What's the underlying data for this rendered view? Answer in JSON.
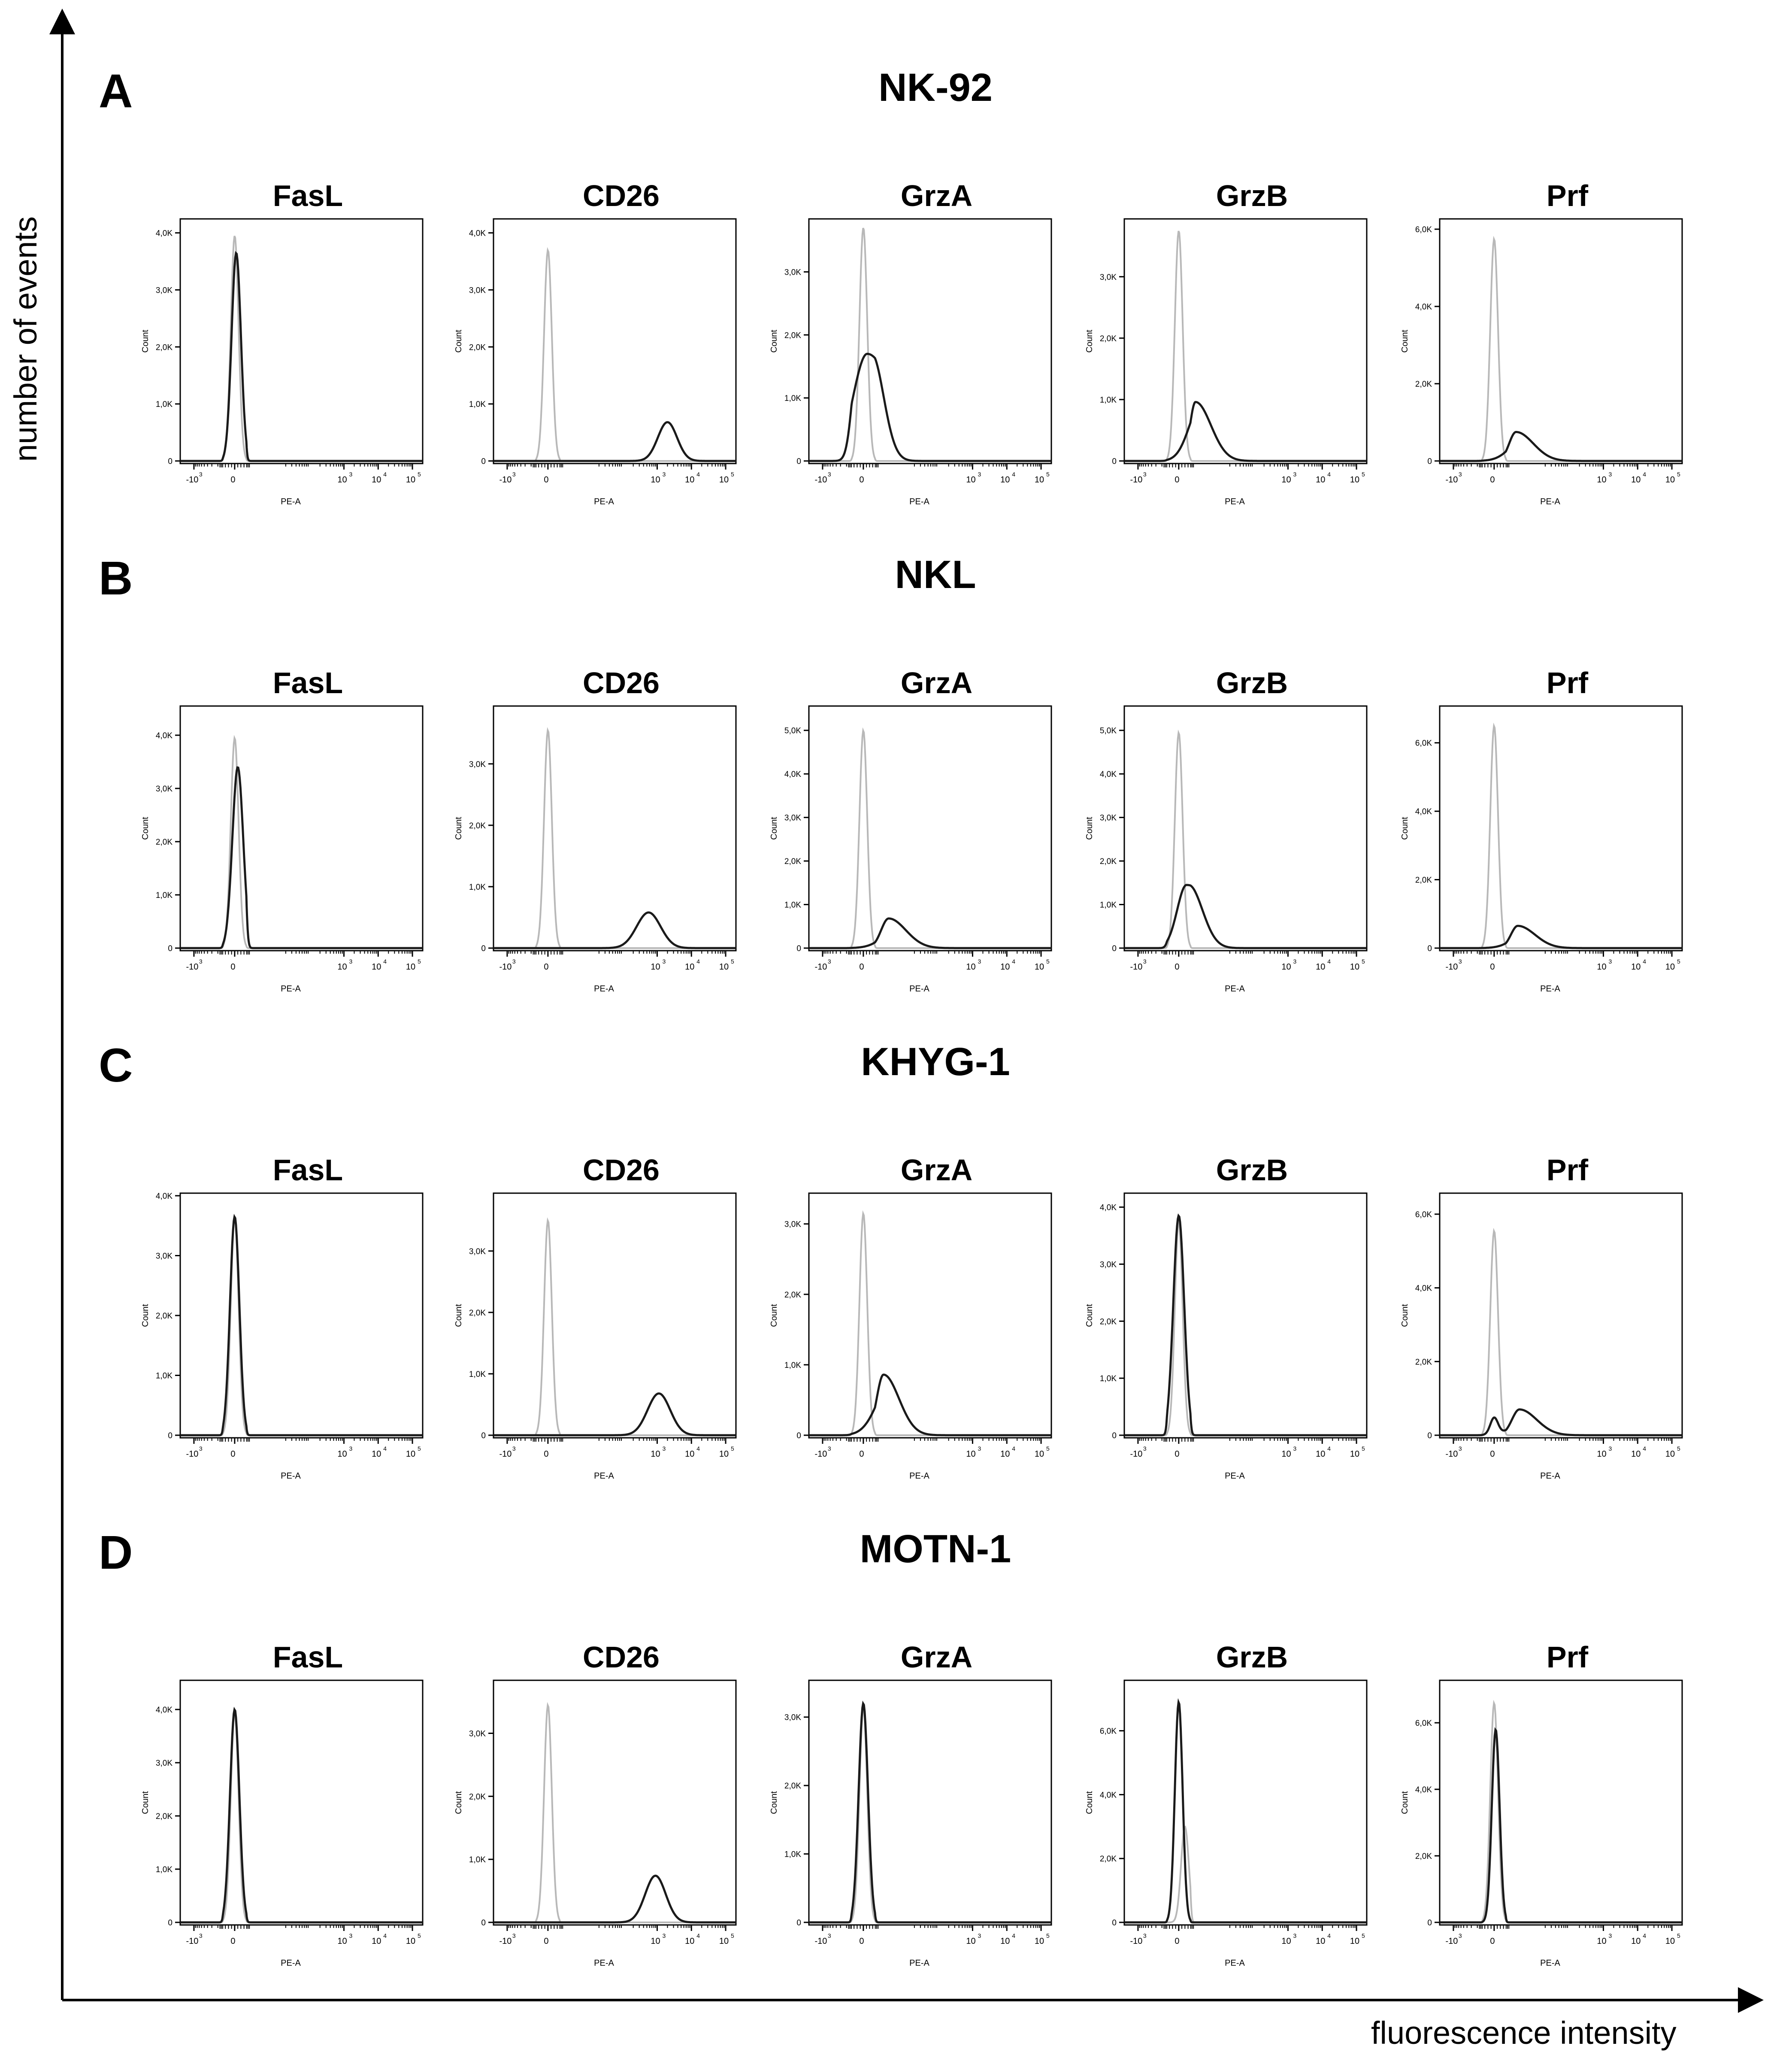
{
  "figure": {
    "y_axis_label": "number of events",
    "x_axis_label": "fluorescence intensity",
    "colors": {
      "isotype": "#b8b8b8",
      "stained": "#1a1a1a",
      "axis": "#000000"
    }
  },
  "chart_data": {
    "type": "line",
    "subtype": "flow-cytometry-histogram-grid",
    "axis_text": {
      "x_ticks": [
        "-10",
        "0",
        "10",
        "10",
        "10"
      ],
      "x_tick_exponents": [
        "3",
        "",
        "3",
        "4",
        "5"
      ],
      "x_axis": "PE-A",
      "y_axis": "Count"
    },
    "panels": [
      {
        "letter": "A",
        "cell_line": "NK-92",
        "markers": [
          {
            "marker": "FasL",
            "yticks": [
              "0",
              "1,0K",
              "2,0K",
              "3,0K",
              "4,0K"
            ],
            "ymax": 4200,
            "iso": {
              "mu": 0.0,
              "sd": 0.05,
              "peak": 3950
            },
            "stain": [
              {
                "mu": 0.02,
                "sd": 0.06,
                "peak": 3650
              }
            ]
          },
          {
            "marker": "CD26",
            "yticks": [
              "0",
              "1,0K",
              "2,0K",
              "3,0K",
              "4,0K"
            ],
            "ymax": 4200,
            "iso": {
              "mu": 0.0,
              "sd": 0.05,
              "peak": 3700
            },
            "stain": [
              {
                "mu": 3.3,
                "sd": 0.28,
                "peak": 680
              }
            ]
          },
          {
            "marker": "GrzA",
            "yticks": [
              "0",
              "1,0K",
              "2,0K",
              "3,0K"
            ],
            "ymax": 3800,
            "iso": {
              "mu": 0.0,
              "sd": 0.05,
              "peak": 3700
            },
            "stain": [
              {
                "mu": 0.05,
                "sd": 0.18,
                "peak": 1700,
                "sd_right": 0.35
              }
            ]
          },
          {
            "marker": "GrzB",
            "yticks": [
              "0",
              "1,0K",
              "2,0K",
              "3,0K"
            ],
            "ymax": 3900,
            "iso": {
              "mu": 0.0,
              "sd": 0.05,
              "peak": 3750
            },
            "stain": [
              {
                "mu": 0.3,
                "sd": 0.16,
                "peak": 960,
                "sd_right": 0.45
              }
            ]
          },
          {
            "marker": "Prf",
            "yticks": [
              "0",
              "2,0K",
              "4,0K",
              "6,0K"
            ],
            "ymax": 6200,
            "iso": {
              "mu": 0.0,
              "sd": 0.05,
              "peak": 5750
            },
            "stain": [
              {
                "mu": 0.45,
                "sd": 0.2,
                "peak": 750,
                "sd_right": 0.5
              }
            ]
          }
        ]
      },
      {
        "letter": "B",
        "cell_line": "NKL",
        "markers": [
          {
            "marker": "FasL",
            "yticks": [
              "0",
              "1,0K",
              "2,0K",
              "3,0K",
              "4,0K"
            ],
            "ymax": 4500,
            "iso": {
              "mu": 0.0,
              "sd": 0.05,
              "peak": 3950
            },
            "stain": [
              {
                "mu": 0.04,
                "sd": 0.07,
                "peak": 3400
              }
            ]
          },
          {
            "marker": "CD26",
            "yticks": [
              "0",
              "1,0K",
              "2,0K",
              "3,0K"
            ],
            "ymax": 3900,
            "iso": {
              "mu": 0.0,
              "sd": 0.05,
              "peak": 3550
            },
            "stain": [
              {
                "mu": 2.75,
                "sd": 0.35,
                "peak": 580
              }
            ]
          },
          {
            "marker": "GrzA",
            "yticks": [
              "0",
              "1,0K",
              "2,0K",
              "3,0K",
              "4,0K",
              "5,0K"
            ],
            "ymax": 5500,
            "iso": {
              "mu": 0.0,
              "sd": 0.05,
              "peak": 5000
            },
            "stain": [
              {
                "mu": 0.55,
                "sd": 0.22,
                "peak": 680,
                "sd_right": 0.5
              }
            ]
          },
          {
            "marker": "GrzB",
            "yticks": [
              "0",
              "1,0K",
              "2,0K",
              "3,0K",
              "4,0K",
              "5,0K"
            ],
            "ymax": 5500,
            "iso": {
              "mu": 0.0,
              "sd": 0.05,
              "peak": 4950
            },
            "stain": [
              {
                "mu": 0.1,
                "sd": 0.12,
                "peak": 1450,
                "sd_right": 0.4
              }
            ]
          },
          {
            "marker": "Prf",
            "yticks": [
              "0",
              "2,0K",
              "4,0K",
              "6,0K"
            ],
            "ymax": 7000,
            "iso": {
              "mu": 0.0,
              "sd": 0.05,
              "peak": 6500
            },
            "stain": [
              {
                "mu": 0.5,
                "sd": 0.2,
                "peak": 650,
                "sd_right": 0.5
              }
            ]
          }
        ]
      },
      {
        "letter": "C",
        "cell_line": "KHYG-1",
        "markers": [
          {
            "marker": "FasL",
            "yticks": [
              "0",
              "1,0K",
              "2,0K",
              "3,0K",
              "4,0K"
            ],
            "ymax": 4000,
            "iso": {
              "mu": 0.0,
              "sd": 0.05,
              "peak": 3650
            },
            "stain": [
              {
                "mu": 0.0,
                "sd": 0.06,
                "peak": 3650
              }
            ]
          },
          {
            "marker": "CD26",
            "yticks": [
              "0",
              "1,0K",
              "2,0K",
              "3,0K"
            ],
            "ymax": 3900,
            "iso": {
              "mu": 0.0,
              "sd": 0.05,
              "peak": 3500
            },
            "stain": [
              {
                "mu": 3.05,
                "sd": 0.33,
                "peak": 680
              }
            ]
          },
          {
            "marker": "GrzA",
            "yticks": [
              "0",
              "1,0K",
              "2,0K",
              "3,0K"
            ],
            "ymax": 3400,
            "iso": {
              "mu": 0.0,
              "sd": 0.05,
              "peak": 3150
            },
            "stain": [
              {
                "mu": 0.4,
                "sd": 0.2,
                "peak": 860,
                "sd_right": 0.45
              }
            ]
          },
          {
            "marker": "GrzB",
            "yticks": [
              "0",
              "1,0K",
              "2,0K",
              "3,0K",
              "4,0K"
            ],
            "ymax": 4200,
            "iso": {
              "mu": 0.0,
              "sd": 0.05,
              "peak": 3750
            },
            "stain": [
              {
                "mu": 0.0,
                "sd": 0.07,
                "peak": 3850
              }
            ]
          },
          {
            "marker": "Prf",
            "yticks": [
              "0",
              "2,0K",
              "4,0K",
              "6,0K"
            ],
            "ymax": 6500,
            "iso": {
              "mu": 0.0,
              "sd": 0.05,
              "peak": 5550
            },
            "stain": [
              {
                "mu": 0.0,
                "sd": 0.05,
                "peak": 450
              },
              {
                "mu": 0.55,
                "sd": 0.22,
                "peak": 700,
                "sd_right": 0.5
              }
            ]
          }
        ]
      },
      {
        "letter": "D",
        "cell_line": "MOTN-1",
        "markers": [
          {
            "marker": "FasL",
            "yticks": [
              "0",
              "1,0K",
              "2,0K",
              "3,0K",
              "4,0K"
            ],
            "ymax": 4500,
            "iso": {
              "mu": 0.0,
              "sd": 0.05,
              "peak": 3950
            },
            "stain": [
              {
                "mu": 0.0,
                "sd": 0.06,
                "peak": 4000
              }
            ]
          },
          {
            "marker": "CD26",
            "yticks": [
              "0",
              "1,0K",
              "2,0K",
              "3,0K"
            ],
            "ymax": 3800,
            "iso": {
              "mu": 0.0,
              "sd": 0.05,
              "peak": 3450
            },
            "stain": [
              {
                "mu": 2.95,
                "sd": 0.3,
                "peak": 740
              }
            ]
          },
          {
            "marker": "GrzA",
            "yticks": [
              "0",
              "1,0K",
              "2,0K",
              "3,0K"
            ],
            "ymax": 3500,
            "iso": {
              "mu": 0.0,
              "sd": 0.05,
              "peak": 3150
            },
            "stain": [
              {
                "mu": 0.0,
                "sd": 0.06,
                "peak": 3200
              }
            ]
          },
          {
            "marker": "GrzB",
            "yticks": [
              "0",
              "2,0K",
              "4,0K",
              "6,0K"
            ],
            "ymax": 7500,
            "iso": {
              "mu": 0.08,
              "sd": 0.05,
              "peak": 3000
            },
            "stain": [
              {
                "mu": 0.0,
                "sd": 0.05,
                "peak": 6900
              }
            ]
          },
          {
            "marker": "Prf",
            "yticks": [
              "0",
              "2,0K",
              "4,0K",
              "6,0K"
            ],
            "ymax": 7200,
            "iso": {
              "mu": 0.0,
              "sd": 0.05,
              "peak": 6600
            },
            "stain": [
              {
                "mu": 0.02,
                "sd": 0.05,
                "peak": 5800
              }
            ]
          }
        ]
      }
    ]
  }
}
